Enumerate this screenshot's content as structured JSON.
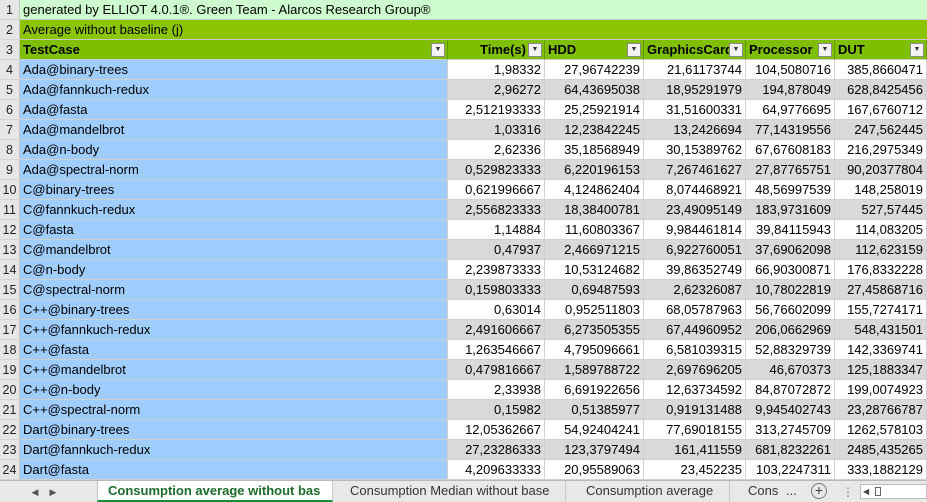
{
  "sheet": {
    "banner": "generated by ELLIOT 4.0.1®. Green Team - Alarcos Research Group®",
    "subtitle": "Average without baseline (j)",
    "headers": {
      "testcase": "TestCase",
      "time": "Time(s)",
      "hdd": "HDD",
      "gc": "GraphicsCard",
      "proc": "Processor",
      "dut": "DUT"
    },
    "filter_icon": "dropdown-arrow-icon",
    "row_numbers": [
      "1",
      "2",
      "3",
      "4",
      "5",
      "6",
      "7",
      "8",
      "9",
      "10",
      "11",
      "12",
      "13",
      "14",
      "15",
      "16",
      "17",
      "18",
      "19",
      "20",
      "21",
      "22",
      "23",
      "24"
    ],
    "rows": [
      {
        "testcase": "Ada@binary-trees",
        "time": "1,98332",
        "hdd": "27,96742239",
        "gc": "21,61173744",
        "proc": "104,5080716",
        "dut": "385,8660471"
      },
      {
        "testcase": "Ada@fannkuch-redux",
        "time": "2,96272",
        "hdd": "64,43695038",
        "gc": "18,95291979",
        "proc": "194,878049",
        "dut": "628,8425456"
      },
      {
        "testcase": "Ada@fasta",
        "time": "2,512193333",
        "hdd": "25,25921914",
        "gc": "31,51600331",
        "proc": "64,9776695",
        "dut": "167,6760712"
      },
      {
        "testcase": "Ada@mandelbrot",
        "time": "1,03316",
        "hdd": "12,23842245",
        "gc": "13,2426694",
        "proc": "77,14319556",
        "dut": "247,562445"
      },
      {
        "testcase": "Ada@n-body",
        "time": "2,62336",
        "hdd": "35,18568949",
        "gc": "30,15389762",
        "proc": "67,67608183",
        "dut": "216,2975349"
      },
      {
        "testcase": "Ada@spectral-norm",
        "time": "0,529823333",
        "hdd": "6,220196153",
        "gc": "7,267461627",
        "proc": "27,87765751",
        "dut": "90,20377804"
      },
      {
        "testcase": "C@binary-trees",
        "time": "0,621996667",
        "hdd": "4,124862404",
        "gc": "8,074468921",
        "proc": "48,56997539",
        "dut": "148,258019"
      },
      {
        "testcase": "C@fannkuch-redux",
        "time": "2,556823333",
        "hdd": "18,38400781",
        "gc": "23,49095149",
        "proc": "183,9731609",
        "dut": "527,57445"
      },
      {
        "testcase": "C@fasta",
        "time": "1,14884",
        "hdd": "11,60803367",
        "gc": "9,984461814",
        "proc": "39,84115943",
        "dut": "114,083205"
      },
      {
        "testcase": "C@mandelbrot",
        "time": "0,47937",
        "hdd": "2,466971215",
        "gc": "6,922760051",
        "proc": "37,69062098",
        "dut": "112,623159"
      },
      {
        "testcase": "C@n-body",
        "time": "2,239873333",
        "hdd": "10,53124682",
        "gc": "39,86352749",
        "proc": "66,90300871",
        "dut": "176,8332228"
      },
      {
        "testcase": "C@spectral-norm",
        "time": "0,159803333",
        "hdd": "0,69487593",
        "gc": "2,62326087",
        "proc": "10,78022819",
        "dut": "27,45868716"
      },
      {
        "testcase": "C++@binary-trees",
        "time": "0,63014",
        "hdd": "0,952511803",
        "gc": "68,05787963",
        "proc": "56,76602099",
        "dut": "155,7274171"
      },
      {
        "testcase": "C++@fannkuch-redux",
        "time": "2,491606667",
        "hdd": "6,273505355",
        "gc": "67,44960952",
        "proc": "206,0662969",
        "dut": "548,431501"
      },
      {
        "testcase": "C++@fasta",
        "time": "1,263546667",
        "hdd": "4,795096661",
        "gc": "6,581039315",
        "proc": "52,88329739",
        "dut": "142,3369741"
      },
      {
        "testcase": "C++@mandelbrot",
        "time": "0,479816667",
        "hdd": "1,589788722",
        "gc": "2,697696205",
        "proc": "46,670373",
        "dut": "125,1883347"
      },
      {
        "testcase": "C++@n-body",
        "time": "2,33938",
        "hdd": "6,691922656",
        "gc": "12,63734592",
        "proc": "84,87072872",
        "dut": "199,0074923"
      },
      {
        "testcase": "C++@spectral-norm",
        "time": "0,15982",
        "hdd": "0,51385977",
        "gc": "0,919131488",
        "proc": "9,945402743",
        "dut": "23,28766787"
      },
      {
        "testcase": "Dart@binary-trees",
        "time": "12,05362667",
        "hdd": "54,92404241",
        "gc": "77,69018155",
        "proc": "313,2745709",
        "dut": "1262,578103"
      },
      {
        "testcase": "Dart@fannkuch-redux",
        "time": "27,23286333",
        "hdd": "123,3797494",
        "gc": "161,411559",
        "proc": "681,8232261",
        "dut": "2485,435265"
      },
      {
        "testcase": "Dart@fasta",
        "time": "4,209633333",
        "hdd": "20,95589063",
        "gc": "23,452235",
        "proc": "103,2247311",
        "dut": "333,1882129"
      }
    ]
  },
  "tabs": {
    "active": "Consumption average without bas",
    "tab2": "Consumption Median without base",
    "tab3": "Consumption average",
    "tab4": "Cons",
    "more": "...",
    "add_icon": "plus-circle-icon",
    "sep": "⋮"
  }
}
